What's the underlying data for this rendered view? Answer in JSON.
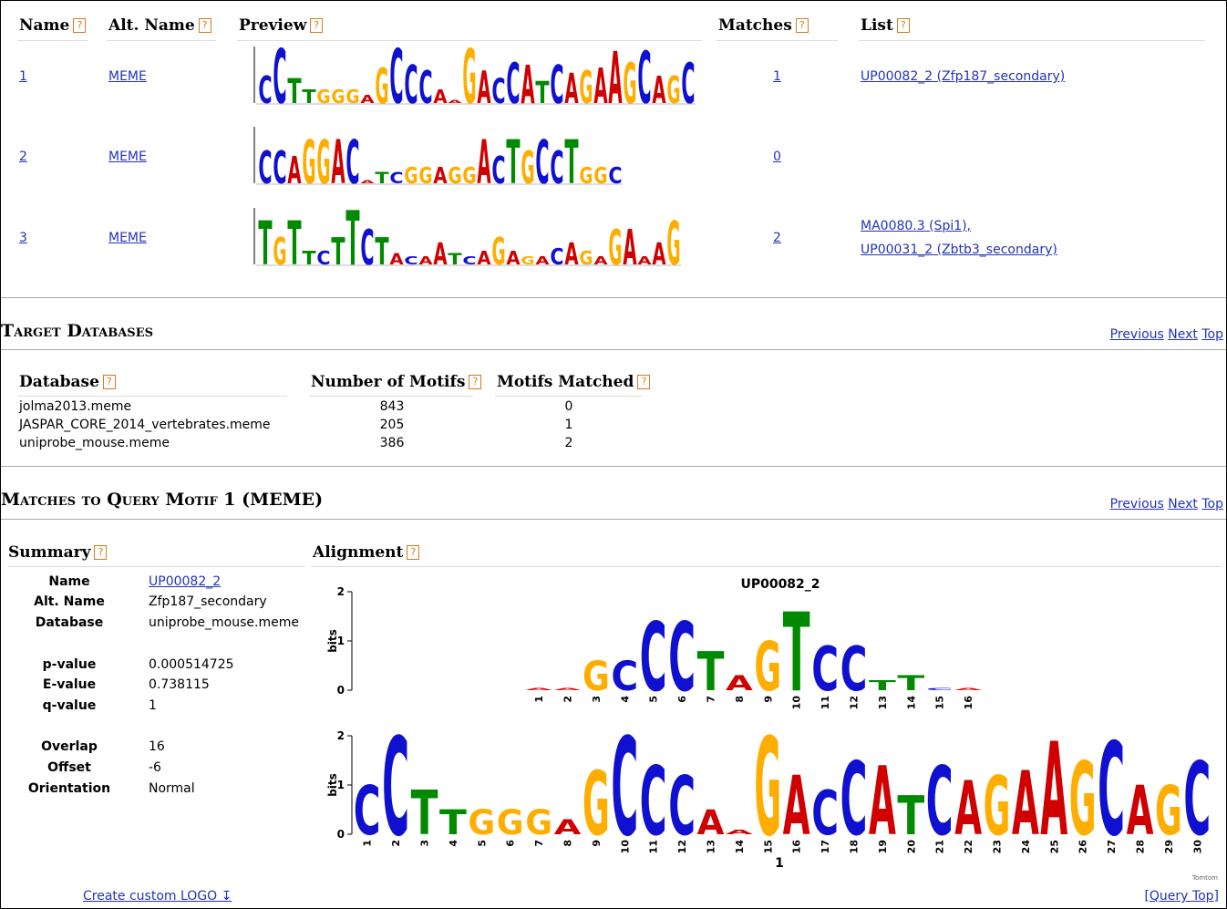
{
  "help_icon": "?",
  "motifs_table": {
    "headers": [
      "Name",
      "Alt. Name",
      "Preview",
      "Matches",
      "List"
    ],
    "rows": [
      {
        "name": "1",
        "alt_name": "MEME",
        "matches": "1",
        "list": [
          "UP00082_2 (Zfp187_secondary)"
        ],
        "logo": {
          "letters": "CCTTGGGAGCCCAAGACCATCAGAAGCAGC",
          "heights": [
            1.0,
            2.0,
            0.9,
            0.5,
            0.5,
            0.5,
            0.5,
            0.3,
            1.3,
            2.0,
            1.4,
            1.2,
            0.5,
            0.1,
            2.0,
            1.2,
            0.9,
            1.5,
            1.4,
            0.8,
            1.4,
            1.1,
            1.2,
            1.3,
            1.9,
            1.5,
            1.9,
            1.0,
            1.0,
            1.5
          ]
        }
      },
      {
        "name": "2",
        "alt_name": "MEME",
        "matches": "0",
        "list": [],
        "logo": {
          "letters": "CCAGGACATCGGAGGACTGCCTGGC",
          "heights": [
            1.2,
            1.2,
            1.0,
            1.6,
            1.6,
            1.6,
            1.6,
            0.1,
            0.4,
            0.4,
            0.6,
            0.6,
            0.6,
            0.6,
            0.6,
            1.6,
            1.0,
            1.6,
            1.2,
            1.6,
            1.2,
            1.6,
            0.6,
            0.6,
            0.6
          ]
        }
      },
      {
        "name": "3",
        "alt_name": "MEME",
        "matches": "2",
        "list": [
          "MA0080.3 (Spi1),",
          "UP00031_2 (Zbtb3_secondary)"
        ],
        "logo": {
          "letters": "TGTTCTTCTACAATCAGAGACAGAGAAAG",
          "heights": [
            1.6,
            1.0,
            1.6,
            0.5,
            0.5,
            1.0,
            2.0,
            1.3,
            1.0,
            0.4,
            0.3,
            0.3,
            0.8,
            0.4,
            0.3,
            0.5,
            1.0,
            0.5,
            0.3,
            0.3,
            0.6,
            0.8,
            0.5,
            0.3,
            1.3,
            1.3,
            0.3,
            0.8,
            1.6
          ]
        }
      }
    ]
  },
  "nav_links": [
    "Previous",
    "Next",
    "Top"
  ],
  "target_databases": {
    "title": "Target Databases",
    "headers": [
      "Database",
      "Number of Motifs",
      "Motifs Matched"
    ],
    "rows": [
      [
        "jolma2013.meme",
        "843",
        "0"
      ],
      [
        "JASPAR_CORE_2014_vertebrates.meme",
        "205",
        "1"
      ],
      [
        "uniprobe_mouse.meme",
        "386",
        "2"
      ]
    ]
  },
  "matches": {
    "title": "Matches to Query Motif 1 (MEME)",
    "summary_header": "Summary",
    "alignment_header": "Alignment",
    "summary": [
      {
        "label": "Name",
        "value": "UP00082_2"
      },
      {
        "label": "Alt. Name",
        "value": "Zfp187_secondary"
      },
      {
        "label": "Database",
        "value": "uniprobe_mouse.meme"
      },
      {
        "label": "p-value",
        "value": "0.000514725"
      },
      {
        "label": "E-value",
        "value": "0.738115"
      },
      {
        "label": "q-value",
        "value": "1"
      },
      {
        "label": "Overlap",
        "value": 16
      },
      {
        "label": "Offset",
        "value": -6
      },
      {
        "label": "Orientation",
        "value": "Normal"
      }
    ],
    "alignment": {
      "title": "UP00082_2",
      "axis_label": "bits",
      "ylim": [
        0,
        2
      ],
      "yticks": [
        0,
        1,
        2
      ],
      "target": {
        "letters": "AAGCCCTAGTCCTTCA",
        "heights": [
          0.05,
          0.05,
          0.6,
          0.6,
          1.4,
          1.4,
          0.8,
          0.3,
          1.0,
          1.6,
          0.9,
          0.9,
          0.2,
          0.3,
          0.05,
          0.05
        ],
        "positions": [
          1,
          2,
          3,
          4,
          5,
          6,
          7,
          8,
          9,
          10,
          11,
          12,
          13,
          14,
          15,
          16
        ]
      },
      "query": {
        "letters": "CCTTGGGAGCCCAAGACCATCAGAAGCAGC",
        "heights": [
          1.0,
          2.0,
          0.9,
          0.5,
          0.5,
          0.5,
          0.5,
          0.3,
          1.3,
          2.0,
          1.4,
          1.2,
          0.5,
          0.1,
          2.0,
          1.2,
          0.9,
          1.5,
          1.4,
          0.8,
          1.4,
          1.1,
          1.2,
          1.3,
          1.9,
          1.5,
          1.9,
          1.0,
          1.0,
          1.5
        ],
        "positions": [
          1,
          2,
          3,
          4,
          5,
          6,
          7,
          8,
          9,
          10,
          11,
          12,
          13,
          14,
          15,
          16,
          17,
          18,
          19,
          20,
          21,
          22,
          23,
          24,
          25,
          26,
          27,
          28,
          29,
          30
        ]
      },
      "query_label": "1",
      "credit": "Tomtom"
    }
  },
  "footer": {
    "create_logo": "Create custom LOGO ↧",
    "query_top": "[Query Top]"
  }
}
